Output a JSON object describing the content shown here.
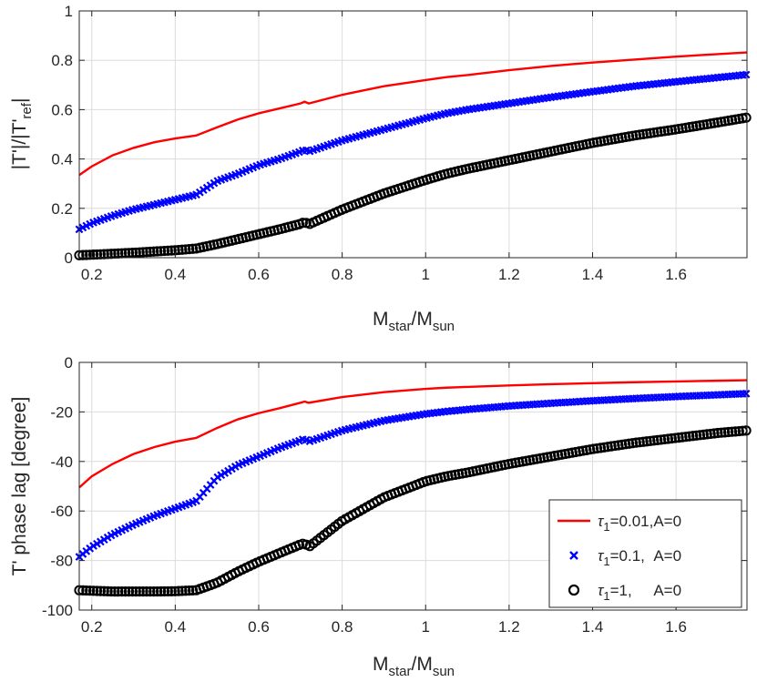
{
  "chart_data": [
    {
      "type": "line",
      "title": "",
      "xlabel": {
        "base": "M",
        "sub": "star",
        "mid": "/M",
        "sub2": "sun"
      },
      "ylabel": {
        "pre": "|T'|/|T'",
        "sub": "ref",
        "post": "|"
      },
      "xlim": [
        0.17,
        1.77
      ],
      "ylim": [
        0,
        1
      ],
      "xticks": [
        0.2,
        0.4,
        0.6,
        0.8,
        1,
        1.2,
        1.4,
        1.6
      ],
      "xtick_labels": [
        "0.2",
        "0.4",
        "0.6",
        "0.8",
        "1",
        "1.2",
        "1.4",
        "1.6"
      ],
      "yticks": [
        0,
        0.2,
        0.4,
        0.6,
        0.8,
        1
      ],
      "ytick_labels": [
        "0",
        "0.2",
        "0.4",
        "0.6",
        "0.8",
        "1"
      ],
      "grid": true,
      "series": [
        {
          "name": "tau1=0.01, A=0",
          "marker": "line",
          "color": "#ff0000",
          "points": [
            [
              0.17,
              0.335
            ],
            [
              0.2,
              0.37
            ],
            [
              0.25,
              0.415
            ],
            [
              0.3,
              0.445
            ],
            [
              0.35,
              0.468
            ],
            [
              0.4,
              0.483
            ],
            [
              0.45,
              0.495
            ],
            [
              0.5,
              0.528
            ],
            [
              0.55,
              0.56
            ],
            [
              0.6,
              0.585
            ],
            [
              0.65,
              0.605
            ],
            [
              0.7,
              0.625
            ],
            [
              0.71,
              0.632
            ],
            [
              0.72,
              0.625
            ],
            [
              0.8,
              0.66
            ],
            [
              0.9,
              0.695
            ],
            [
              1.0,
              0.72
            ],
            [
              1.05,
              0.732
            ],
            [
              1.1,
              0.74
            ],
            [
              1.2,
              0.76
            ],
            [
              1.3,
              0.777
            ],
            [
              1.4,
              0.791
            ],
            [
              1.5,
              0.803
            ],
            [
              1.6,
              0.815
            ],
            [
              1.7,
              0.825
            ],
            [
              1.77,
              0.832
            ]
          ]
        },
        {
          "name": "tau1=0.1, A=0",
          "marker": "x",
          "color": "#0000ff",
          "points": [
            [
              0.17,
              0.115
            ],
            [
              0.2,
              0.14
            ],
            [
              0.25,
              0.17
            ],
            [
              0.3,
              0.195
            ],
            [
              0.35,
              0.215
            ],
            [
              0.4,
              0.235
            ],
            [
              0.45,
              0.255
            ],
            [
              0.5,
              0.31
            ],
            [
              0.55,
              0.34
            ],
            [
              0.6,
              0.375
            ],
            [
              0.65,
              0.4
            ],
            [
              0.7,
              0.43
            ],
            [
              0.71,
              0.438
            ],
            [
              0.72,
              0.43
            ],
            [
              0.8,
              0.475
            ],
            [
              0.9,
              0.52
            ],
            [
              1.0,
              0.565
            ],
            [
              1.05,
              0.585
            ],
            [
              1.1,
              0.6
            ],
            [
              1.2,
              0.625
            ],
            [
              1.3,
              0.65
            ],
            [
              1.4,
              0.673
            ],
            [
              1.5,
              0.695
            ],
            [
              1.6,
              0.713
            ],
            [
              1.7,
              0.73
            ],
            [
              1.77,
              0.742
            ]
          ]
        },
        {
          "name": "tau1=1, A=0",
          "marker": "o",
          "color": "#000000",
          "points": [
            [
              0.17,
              0.01
            ],
            [
              0.2,
              0.012
            ],
            [
              0.25,
              0.016
            ],
            [
              0.3,
              0.02
            ],
            [
              0.35,
              0.025
            ],
            [
              0.4,
              0.03
            ],
            [
              0.45,
              0.037
            ],
            [
              0.5,
              0.055
            ],
            [
              0.55,
              0.075
            ],
            [
              0.6,
              0.095
            ],
            [
              0.65,
              0.115
            ],
            [
              0.7,
              0.137
            ],
            [
              0.71,
              0.145
            ],
            [
              0.72,
              0.135
            ],
            [
              0.8,
              0.195
            ],
            [
              0.9,
              0.26
            ],
            [
              1.0,
              0.315
            ],
            [
              1.05,
              0.34
            ],
            [
              1.1,
              0.36
            ],
            [
              1.2,
              0.395
            ],
            [
              1.3,
              0.43
            ],
            [
              1.4,
              0.465
            ],
            [
              1.5,
              0.495
            ],
            [
              1.6,
              0.52
            ],
            [
              1.7,
              0.548
            ],
            [
              1.77,
              0.568
            ]
          ]
        }
      ]
    },
    {
      "type": "line",
      "title": "",
      "xlabel": {
        "base": "M",
        "sub": "star",
        "mid": "/M",
        "sub2": "sun"
      },
      "ylabel": {
        "pre": "T' phase lag [degree]"
      },
      "xlim": [
        0.17,
        1.77
      ],
      "ylim": [
        -100,
        0
      ],
      "xticks": [
        0.2,
        0.4,
        0.6,
        0.8,
        1,
        1.2,
        1.4,
        1.6
      ],
      "xtick_labels": [
        "0.2",
        "0.4",
        "0.6",
        "0.8",
        "1",
        "1.2",
        "1.4",
        "1.6"
      ],
      "yticks": [
        -100,
        -80,
        -60,
        -40,
        -20,
        0
      ],
      "ytick_labels": [
        "-100",
        "-80",
        "-60",
        "-40",
        "-20",
        "0"
      ],
      "grid": true,
      "legend_position": "bottom-right",
      "legend": [
        {
          "marker": "line",
          "color": "#ff0000",
          "sym": "τ",
          "sub": "1",
          "rest": "=0.01,A=0"
        },
        {
          "marker": "x",
          "color": "#0000ff",
          "sym": "τ",
          "sub": "1",
          "rest": "=0.1,  A=0"
        },
        {
          "marker": "o",
          "color": "#000000",
          "sym": "τ",
          "sub": "1",
          "rest": "=1,     A=0"
        }
      ],
      "series": [
        {
          "name": "tau1=0.01, A=0",
          "marker": "line",
          "color": "#ff0000",
          "points": [
            [
              0.17,
              -50.5
            ],
            [
              0.2,
              -46
            ],
            [
              0.25,
              -41
            ],
            [
              0.3,
              -37
            ],
            [
              0.35,
              -34.2
            ],
            [
              0.4,
              -32
            ],
            [
              0.45,
              -30.5
            ],
            [
              0.5,
              -26.5
            ],
            [
              0.55,
              -23
            ],
            [
              0.6,
              -20.5
            ],
            [
              0.65,
              -18.5
            ],
            [
              0.7,
              -16.3
            ],
            [
              0.71,
              -15.8
            ],
            [
              0.72,
              -16.3
            ],
            [
              0.8,
              -14
            ],
            [
              0.9,
              -12
            ],
            [
              1.0,
              -10.7
            ],
            [
              1.05,
              -10.2
            ],
            [
              1.1,
              -9.9
            ],
            [
              1.2,
              -9.3
            ],
            [
              1.3,
              -8.8
            ],
            [
              1.4,
              -8.4
            ],
            [
              1.5,
              -8
            ],
            [
              1.6,
              -7.7
            ],
            [
              1.7,
              -7.4
            ],
            [
              1.77,
              -7.2
            ]
          ]
        },
        {
          "name": "tau1=0.1, A=0",
          "marker": "x",
          "color": "#0000ff",
          "points": [
            [
              0.17,
              -78.5
            ],
            [
              0.2,
              -74.5
            ],
            [
              0.25,
              -69.5
            ],
            [
              0.3,
              -65.5
            ],
            [
              0.35,
              -62
            ],
            [
              0.4,
              -59
            ],
            [
              0.45,
              -56
            ],
            [
              0.5,
              -46.5
            ],
            [
              0.55,
              -41.5
            ],
            [
              0.6,
              -38
            ],
            [
              0.65,
              -34.5
            ],
            [
              0.7,
              -31.5
            ],
            [
              0.71,
              -30.8
            ],
            [
              0.72,
              -32
            ],
            [
              0.8,
              -27.5
            ],
            [
              0.9,
              -23.5
            ],
            [
              1.0,
              -20.8
            ],
            [
              1.05,
              -19.8
            ],
            [
              1.1,
              -19
            ],
            [
              1.2,
              -17.6
            ],
            [
              1.3,
              -16.5
            ],
            [
              1.4,
              -15.5
            ],
            [
              1.5,
              -14.6
            ],
            [
              1.6,
              -13.8
            ],
            [
              1.7,
              -13.1
            ],
            [
              1.77,
              -12.6
            ]
          ]
        },
        {
          "name": "tau1=1, A=0",
          "marker": "o",
          "color": "#000000",
          "points": [
            [
              0.17,
              -92
            ],
            [
              0.2,
              -92.2
            ],
            [
              0.25,
              -92.5
            ],
            [
              0.3,
              -92.5
            ],
            [
              0.35,
              -92.5
            ],
            [
              0.4,
              -92.4
            ],
            [
              0.45,
              -92
            ],
            [
              0.5,
              -89
            ],
            [
              0.55,
              -84.5
            ],
            [
              0.6,
              -80.5
            ],
            [
              0.65,
              -77
            ],
            [
              0.7,
              -73.5
            ],
            [
              0.71,
              -73
            ],
            [
              0.72,
              -74.5
            ],
            [
              0.8,
              -64
            ],
            [
              0.9,
              -54.5
            ],
            [
              1.0,
              -48
            ],
            [
              1.05,
              -46
            ],
            [
              1.1,
              -44.5
            ],
            [
              1.2,
              -41
            ],
            [
              1.3,
              -38
            ],
            [
              1.4,
              -35
            ],
            [
              1.5,
              -32.5
            ],
            [
              1.6,
              -30.5
            ],
            [
              1.7,
              -28.5
            ],
            [
              1.77,
              -27.5
            ]
          ]
        }
      ]
    }
  ]
}
